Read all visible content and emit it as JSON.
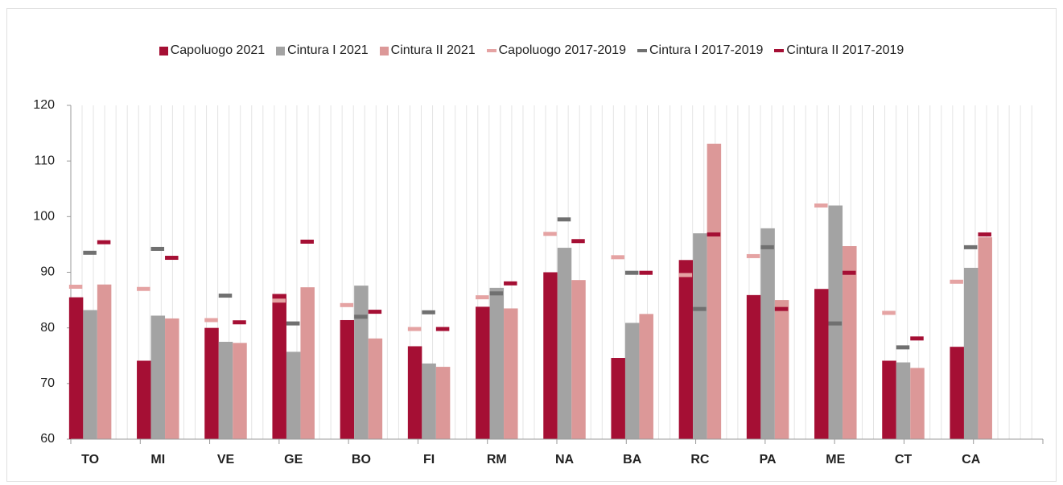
{
  "chart_data": {
    "type": "bar",
    "categories": [
      "TO",
      "MI",
      "VE",
      "GE",
      "BO",
      "FI",
      "RM",
      "NA",
      "BA",
      "RC",
      "PA",
      "ME",
      "CT",
      "CA"
    ],
    "series": [
      {
        "name": "Capoluogo 2021",
        "color": "#a50f34",
        "style": "bar",
        "values": [
          85.5,
          74.1,
          80.0,
          86.1,
          81.4,
          76.7,
          83.8,
          90.0,
          74.6,
          92.2,
          85.9,
          87.0,
          74.1,
          76.6
        ]
      },
      {
        "name": "Cintura I 2021",
        "color": "#a3a3a3",
        "style": "bar",
        "values": [
          83.2,
          82.2,
          77.5,
          75.7,
          87.6,
          73.6,
          87.2,
          94.4,
          80.9,
          97.0,
          97.9,
          102.0,
          73.8,
          90.8
        ]
      },
      {
        "name": "Cintura II 2021",
        "color": "#dc9898",
        "style": "bar",
        "values": [
          87.8,
          81.7,
          77.3,
          87.3,
          78.1,
          73.0,
          83.5,
          88.6,
          82.5,
          113.1,
          85.0,
          94.7,
          72.8,
          96.3
        ]
      },
      {
        "name": "Capoluogo 2017-2019",
        "color": "#e5a3a3",
        "style": "dash",
        "values": [
          87.4,
          87.0,
          81.4,
          84.9,
          84.1,
          79.8,
          85.5,
          96.9,
          92.7,
          89.5,
          92.9,
          102.0,
          82.7,
          88.3
        ]
      },
      {
        "name": "Cintura I 2017-2019",
        "color": "#707070",
        "style": "dash",
        "values": [
          93.5,
          94.2,
          85.8,
          80.8,
          82.0,
          82.8,
          86.2,
          99.5,
          89.9,
          83.4,
          94.5,
          80.8,
          76.5,
          94.5
        ]
      },
      {
        "name": "Cintura II 2017-2019",
        "color": "#a50f34",
        "style": "dash",
        "values": [
          95.4,
          92.6,
          81.0,
          95.5,
          82.9,
          79.8,
          88.0,
          95.6,
          89.9,
          96.8,
          83.4,
          89.9,
          78.1,
          96.8
        ]
      }
    ],
    "ylim": [
      60,
      120
    ],
    "yticks": [
      60,
      70,
      80,
      90,
      100,
      110,
      120
    ]
  }
}
